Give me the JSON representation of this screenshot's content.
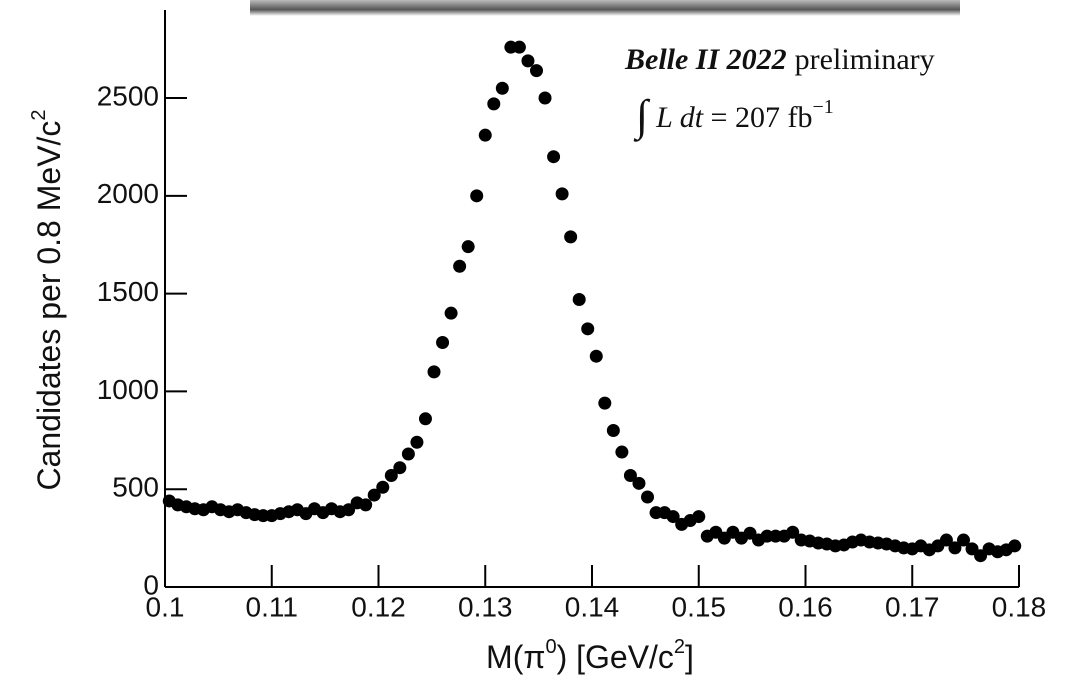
{
  "chart_data": {
    "type": "scatter",
    "x_label": [
      "M(π",
      "0",
      ") [GeV/c",
      "2",
      "]"
    ],
    "y_label": [
      "Candidates per 0.8 MeV/c",
      "2"
    ],
    "experiment": "Belle II 2022",
    "status": "preliminary",
    "luminosity": [
      "∫",
      "L dt",
      " = 207 fb",
      "−1"
    ],
    "color": "#000000",
    "xlim": [
      0.1,
      0.18
    ],
    "xticks": [
      0.1,
      0.11,
      0.12,
      0.13,
      0.14,
      0.15,
      0.16,
      0.17,
      0.18
    ],
    "ylim": [
      0,
      2950
    ],
    "yticks": [
      0,
      500,
      1000,
      1500,
      2000,
      2500
    ],
    "x": [
      0.1004,
      0.1012,
      0.102,
      0.1028,
      0.1036,
      0.1044,
      0.1052,
      0.106,
      0.1068,
      0.1076,
      0.1084,
      0.1092,
      0.11,
      0.1108,
      0.1116,
      0.1124,
      0.1132,
      0.114,
      0.1148,
      0.1156,
      0.1164,
      0.1172,
      0.118,
      0.1188,
      0.1196,
      0.1204,
      0.1212,
      0.122,
      0.1228,
      0.1236,
      0.1244,
      0.1252,
      0.126,
      0.1268,
      0.1276,
      0.1284,
      0.1292,
      0.13,
      0.1308,
      0.1316,
      0.1324,
      0.1332,
      0.134,
      0.1348,
      0.1356,
      0.1364,
      0.1372,
      0.138,
      0.1388,
      0.1396,
      0.1404,
      0.1412,
      0.142,
      0.1428,
      0.1436,
      0.1444,
      0.1452,
      0.146,
      0.1468,
      0.1476,
      0.1484,
      0.1492,
      0.15,
      0.1508,
      0.1516,
      0.1524,
      0.1532,
      0.154,
      0.1548,
      0.1556,
      0.1564,
      0.1572,
      0.158,
      0.1588,
      0.1596,
      0.1604,
      0.1612,
      0.162,
      0.1628,
      0.1636,
      0.1644,
      0.1652,
      0.166,
      0.1668,
      0.1676,
      0.1684,
      0.1692,
      0.17,
      0.1708,
      0.1716,
      0.1724,
      0.1732,
      0.174,
      0.1748,
      0.1756,
      0.1764,
      0.1772,
      0.178,
      0.1788,
      0.1796
    ],
    "values": [
      440,
      420,
      410,
      400,
      395,
      410,
      395,
      385,
      395,
      380,
      370,
      365,
      365,
      375,
      385,
      395,
      375,
      400,
      380,
      400,
      385,
      395,
      430,
      420,
      470,
      510,
      570,
      610,
      680,
      740,
      860,
      1100,
      1250,
      1400,
      1640,
      1740,
      2000,
      2310,
      2470,
      2550,
      2760,
      2760,
      2690,
      2640,
      2500,
      2200,
      2010,
      1790,
      1470,
      1320,
      1180,
      940,
      800,
      690,
      570,
      530,
      460,
      380,
      380,
      360,
      320,
      340,
      360,
      260,
      280,
      250,
      280,
      250,
      275,
      240,
      260,
      260,
      260,
      280,
      240,
      235,
      225,
      220,
      210,
      215,
      230,
      240,
      230,
      225,
      220,
      210,
      200,
      195,
      210,
      190,
      210,
      240,
      200,
      240,
      195,
      160,
      195,
      180,
      190,
      210
    ]
  }
}
